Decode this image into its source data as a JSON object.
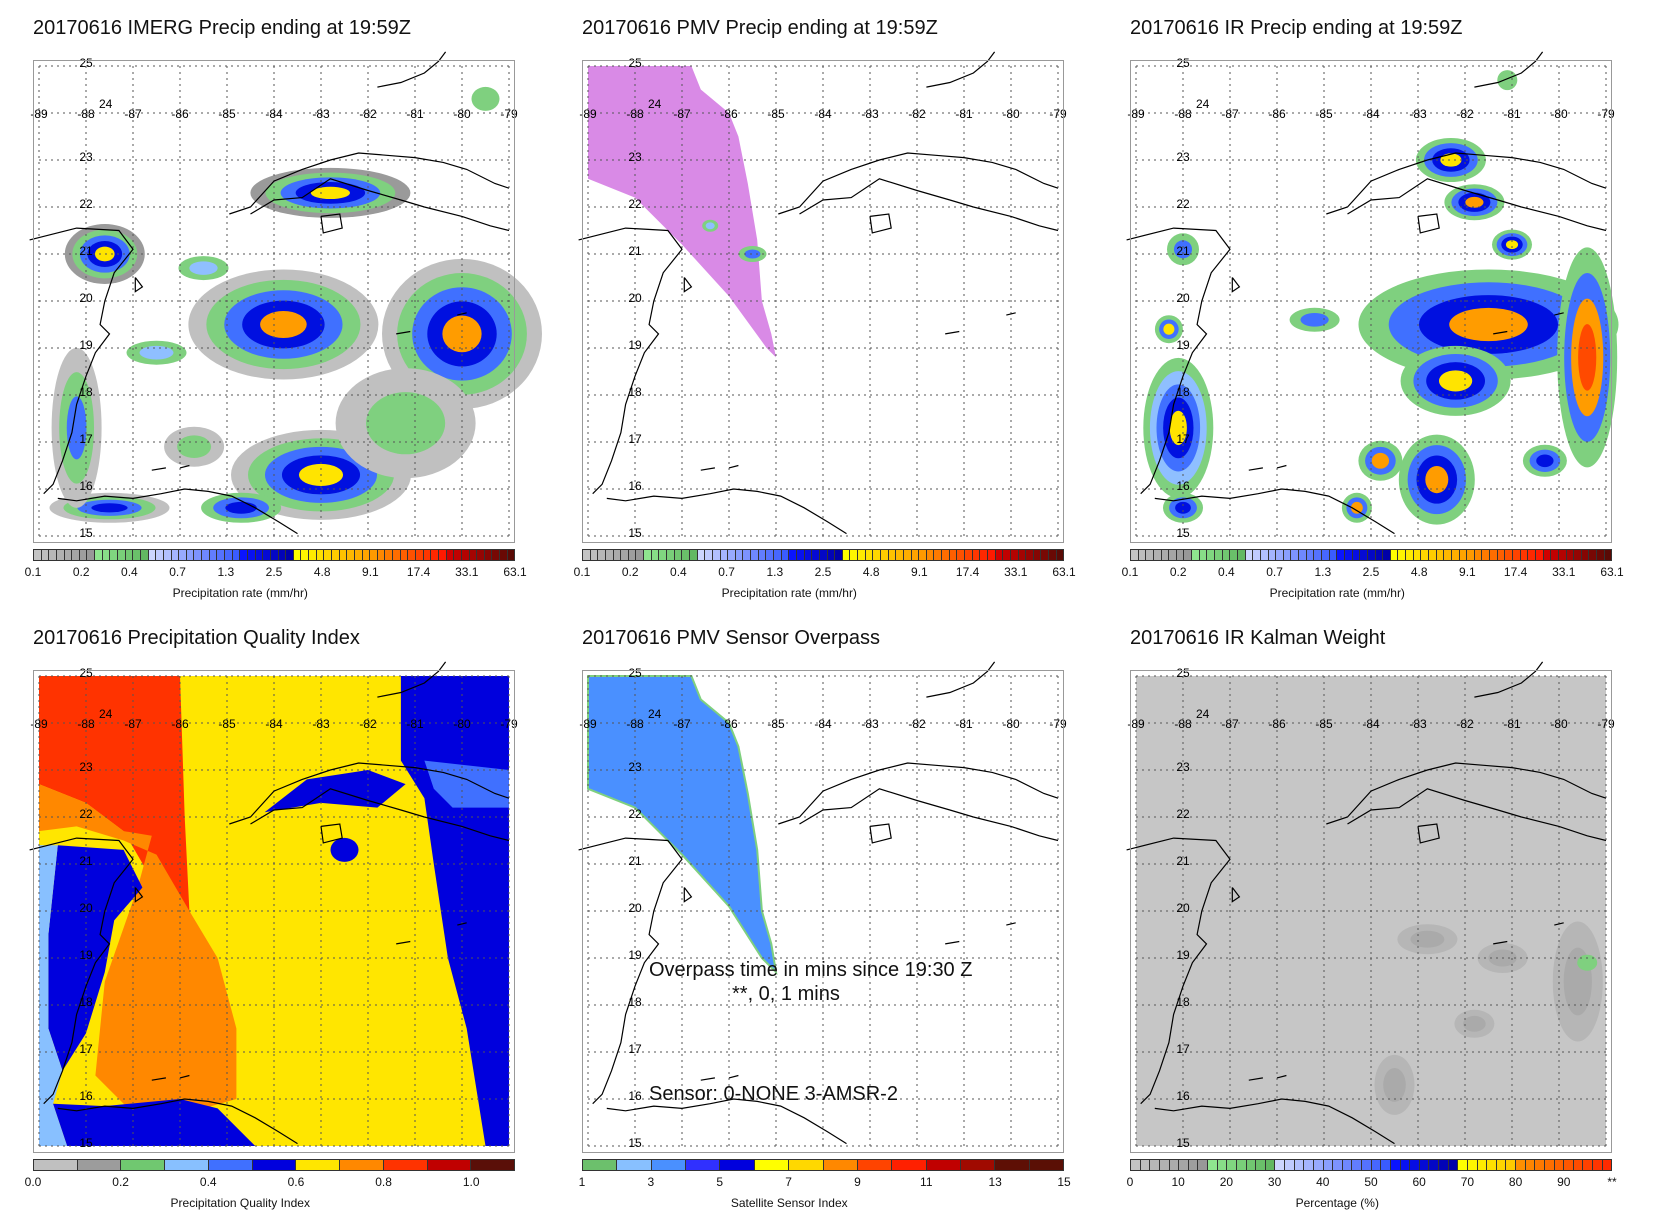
{
  "map": {
    "lon_labels": [
      "-89",
      "-88",
      "-87",
      "-86",
      "-85",
      "-84",
      "-83",
      "-82",
      "-81",
      "-80",
      "-79"
    ],
    "lat_labels": [
      "25",
      "24",
      "23",
      "22",
      "21",
      "20",
      "19",
      "18",
      "17",
      "16",
      "15"
    ]
  },
  "panels": [
    {
      "id": "imerg",
      "title": "20170616 IMERG Precip ending at 19:59Z",
      "kind": "precip_imerg",
      "colorbar": {
        "label": "Precipitation rate (mm/hr)",
        "ticks": [
          "0.1",
          "0.2",
          "0.4",
          "0.7",
          "1.3",
          "2.5",
          "4.8",
          "9.1",
          "17.4",
          "33.1",
          "63.1"
        ],
        "scheme": "precip"
      }
    },
    {
      "id": "pmv",
      "title": "20170616 PMV Precip ending at 19:59Z",
      "kind": "pmv",
      "colorbar": {
        "label": "Precipitation rate (mm/hr)",
        "ticks": [
          "0.1",
          "0.2",
          "0.4",
          "0.7",
          "1.3",
          "2.5",
          "4.8",
          "9.1",
          "17.4",
          "33.1",
          "63.1"
        ],
        "scheme": "precip"
      }
    },
    {
      "id": "ir",
      "title": "20170616 IR Precip ending at 19:59Z",
      "kind": "precip_ir",
      "colorbar": {
        "label": "Precipitation rate (mm/hr)",
        "ticks": [
          "0.1",
          "0.2",
          "0.4",
          "0.7",
          "1.3",
          "2.5",
          "4.8",
          "9.1",
          "17.4",
          "33.1",
          "63.1"
        ],
        "scheme": "precip"
      }
    },
    {
      "id": "pqi",
      "title": "20170616 Precipitation Quality Index",
      "kind": "pqi",
      "colorbar": {
        "label": "Precipitation Quality Index",
        "ticks": [
          "0.0",
          "",
          "0.2",
          "",
          "0.4",
          "",
          "0.6",
          "",
          "0.8",
          "",
          "1.0",
          ""
        ],
        "scheme": "pqi"
      }
    },
    {
      "id": "overpass",
      "title": "20170616 PMV Sensor Overpass",
      "kind": "overpass",
      "annotations": [
        "Overpass time in mins since 19:30 Z",
        "**, 0, 1 mins",
        "Sensor:   0-NONE  3-AMSR-2"
      ],
      "colorbar": {
        "label": "Satellite Sensor Index",
        "ticks": [
          "1",
          "",
          "3",
          "",
          "5",
          "",
          "7",
          "",
          "9",
          "",
          "11",
          "",
          "13",
          "",
          "15"
        ],
        "scheme": "sensor"
      }
    },
    {
      "id": "kalman",
      "title": "20170616 IR Kalman Weight",
      "kind": "kalman",
      "colorbar": {
        "label": "Percentage (%)",
        "ticks": [
          "0",
          "10",
          "20",
          "30",
          "40",
          "50",
          "60",
          "70",
          "80",
          "90",
          "**"
        ],
        "scheme": "pct"
      }
    }
  ],
  "colors": {
    "precip_groups": [
      {
        "from": "#c4c4c4",
        "to": "#989898",
        "n": 8
      },
      {
        "from": "#8fe68f",
        "to": "#62b862",
        "n": 7
      },
      {
        "from": "#cdd6ff",
        "to": "#3a5cff",
        "n": 12
      },
      {
        "from": "#0a14ff",
        "to": "#0000a8",
        "n": 7
      },
      {
        "from": "#ffff00",
        "to": "#ff9a00",
        "n": 11
      },
      {
        "from": "#ff8800",
        "to": "#ff1a00",
        "n": 9
      },
      {
        "from": "#d00000",
        "to": "#5a0a05",
        "n": 9
      }
    ],
    "pqi": [
      "#c0c0c0",
      "#9c9c9c",
      "#70c870",
      "#88c0ff",
      "#4070ff",
      "#0000dd",
      "#ffe600",
      "#ff8800",
      "#ff3300",
      "#c00000",
      "#5a0f08"
    ],
    "sensor": [
      "#6cc06c",
      "#88c0ff",
      "#4a90ff",
      "#3030ff",
      "#0000dd",
      "#ffff00",
      "#ffd800",
      "#ff8800",
      "#ff4400",
      "#ff2000",
      "#c00000",
      "#a00a00",
      "#5e0f05",
      "#5a0f05"
    ],
    "pct_groups": [
      {
        "from": "#c4c4c4",
        "to": "#989898",
        "n": 8
      },
      {
        "from": "#8fe68f",
        "to": "#62b862",
        "n": 7
      },
      {
        "from": "#cdd6ff",
        "to": "#3a5cff",
        "n": 12
      },
      {
        "from": "#0a14ff",
        "to": "#0000a8",
        "n": 7
      },
      {
        "from": "#ffff00",
        "to": "#ffcc00",
        "n": 6
      },
      {
        "from": "#ff9000",
        "to": "#ff2a00",
        "n": 10
      }
    ],
    "pmv_swath": "#d98ae6",
    "overpass_swath": "#4a90ff",
    "kalman_bg": "#c6c6c6"
  }
}
